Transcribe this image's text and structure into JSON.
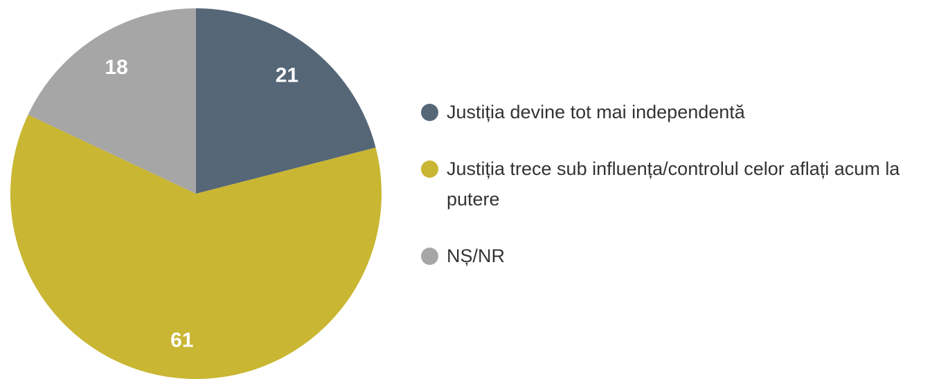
{
  "chart_data": {
    "type": "pie",
    "categories": [
      "Justiția devine tot mai independentă",
      "Justiția trece sub influența/controlul celor aflați acum la putere",
      "NȘ/NR"
    ],
    "values": [
      21,
      61,
      18
    ],
    "colors": [
      "#556677",
      "#c9b632",
      "#a6a6a6"
    ]
  }
}
